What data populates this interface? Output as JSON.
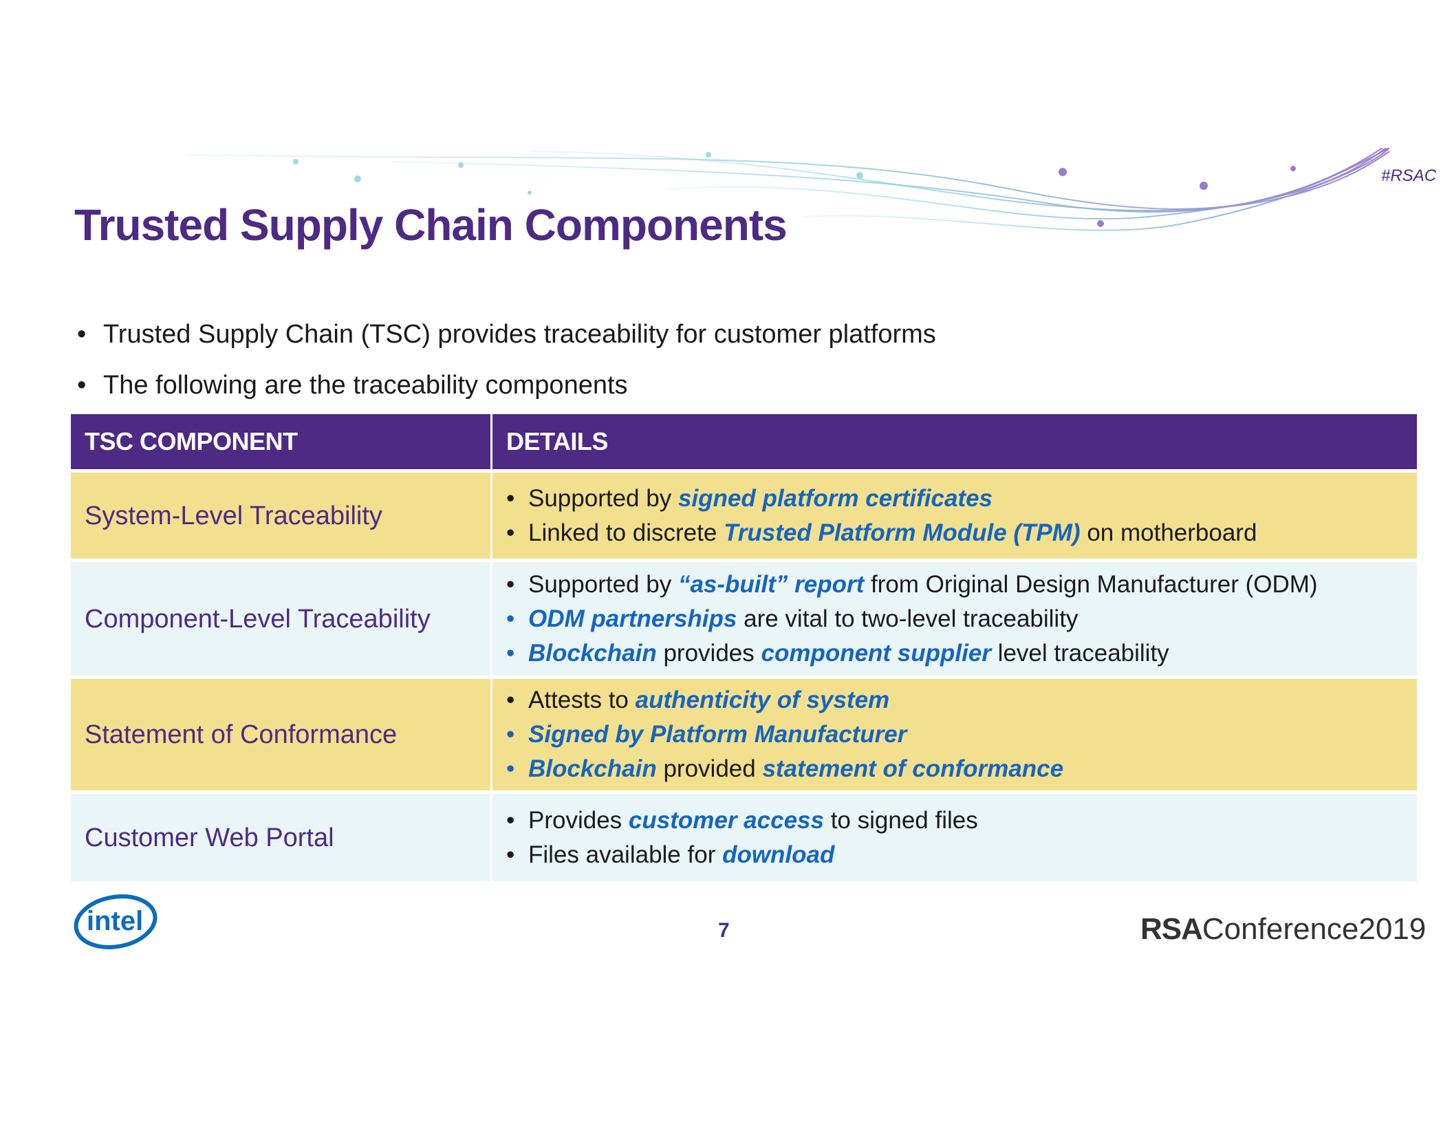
{
  "header": {
    "hashtag": "#RSAC",
    "title": "Trusted Supply Chain Components"
  },
  "intro_bullets": [
    "Trusted Supply Chain (TSC) provides traceability for customer platforms",
    "The following are the traceability components"
  ],
  "table": {
    "headers": [
      "TSC COMPONENT",
      "DETAILS"
    ],
    "rows": [
      {
        "component": "System-Level Traceability",
        "shade": "yellow",
        "details": [
          {
            "bullet_blue": false,
            "segments": [
              {
                "t": "Supported by ",
                "em": false
              },
              {
                "t": "signed platform certificates",
                "em": true
              }
            ]
          },
          {
            "bullet_blue": false,
            "segments": [
              {
                "t": "Linked to discrete ",
                "em": false
              },
              {
                "t": "Trusted Platform Module (TPM)",
                "em": true
              },
              {
                "t": " on motherboard",
                "em": false
              }
            ]
          }
        ]
      },
      {
        "component": "Component-Level Traceability",
        "shade": "blue",
        "details": [
          {
            "bullet_blue": false,
            "segments": [
              {
                "t": "Supported by ",
                "em": false
              },
              {
                "t": "“as-built” report",
                "em": true
              },
              {
                "t": " from Original Design Manufacturer (ODM)",
                "em": false
              }
            ]
          },
          {
            "bullet_blue": true,
            "segments": [
              {
                "t": "ODM partnerships",
                "em": true
              },
              {
                "t": " are vital to two-level traceability",
                "em": false
              }
            ]
          },
          {
            "bullet_blue": true,
            "segments": [
              {
                "t": "Blockchain",
                "em": true
              },
              {
                "t": " provides ",
                "em": false
              },
              {
                "t": "component supplier",
                "em": true
              },
              {
                "t": " level traceability",
                "em": false
              }
            ]
          }
        ]
      },
      {
        "component": "Statement of Conformance",
        "shade": "yellow",
        "details": [
          {
            "bullet_blue": false,
            "segments": [
              {
                "t": "Attests to ",
                "em": false
              },
              {
                "t": "authenticity of system",
                "em": true
              }
            ]
          },
          {
            "bullet_blue": true,
            "segments": [
              {
                "t": "Signed by Platform Manufacturer",
                "em": true
              }
            ]
          },
          {
            "bullet_blue": true,
            "segments": [
              {
                "t": "Blockchain",
                "em": true
              },
              {
                "t": " provided ",
                "em": false
              },
              {
                "t": "statement of conformance",
                "em": true
              }
            ]
          }
        ]
      },
      {
        "component": "Customer Web Portal",
        "shade": "blue",
        "details": [
          {
            "bullet_blue": false,
            "segments": [
              {
                "t": "Provides ",
                "em": false
              },
              {
                "t": "customer access",
                "em": true
              },
              {
                "t": " to signed files",
                "em": false
              }
            ]
          },
          {
            "bullet_blue": false,
            "segments": [
              {
                "t": "Files available for ",
                "em": false
              },
              {
                "t": "download",
                "em": true
              }
            ]
          }
        ]
      }
    ]
  },
  "footer": {
    "logo_text": "intel",
    "page_number": "7",
    "conference_brand": "RSA",
    "conference_name": "Conference2019"
  },
  "colors": {
    "brand_purple": "#4e2a84",
    "emphasis_blue": "#1565c0",
    "row_yellow": "#f3e08e",
    "row_blue": "#eaf5f8"
  }
}
